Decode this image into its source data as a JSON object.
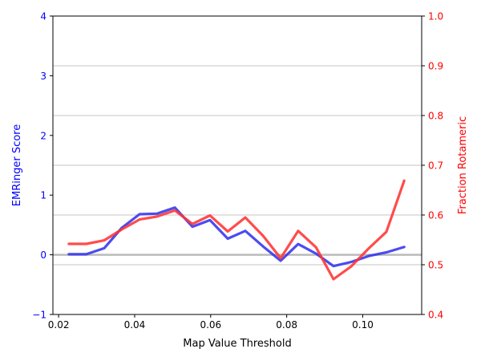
{
  "chart_data": {
    "type": "line",
    "xlabel": "Map Value Threshold",
    "ylabel_left": "EMRinger Score",
    "ylabel_right": "Fraction Rotameric",
    "xlim": [
      0.0185,
      0.1155
    ],
    "ylim_left": [
      -1,
      4
    ],
    "ylim_right": [
      0.4,
      1.0
    ],
    "x_ticks": [
      0.02,
      0.04,
      0.06,
      0.08,
      0.1
    ],
    "x_tick_labels": [
      "0.02",
      "0.04",
      "0.06",
      "0.08",
      "0.10"
    ],
    "y_left_ticks": [
      -1,
      0,
      1,
      2,
      3,
      4
    ],
    "y_left_tick_labels": [
      "−1",
      "0",
      "1",
      "2",
      "3",
      "4"
    ],
    "y_right_ticks": [
      0.4,
      0.5,
      0.6,
      0.7,
      0.8,
      0.9,
      1.0
    ],
    "y_right_tick_labels": [
      "0.4",
      "0.5",
      "0.6",
      "0.7",
      "0.8",
      "0.9",
      "1.0"
    ],
    "grid": "horizontal, right axis",
    "zero_line": 0,
    "x": [
      0.0227,
      0.0273,
      0.032,
      0.0366,
      0.0413,
      0.0459,
      0.0506,
      0.0552,
      0.0598,
      0.0645,
      0.0691,
      0.0738,
      0.0784,
      0.083,
      0.0877,
      0.0923,
      0.097,
      0.1016,
      0.1062,
      0.1109
    ],
    "series": [
      {
        "axis": "left",
        "color": "#3333ee",
        "values": [
          0.01,
          0.01,
          0.11,
          0.45,
          0.68,
          0.69,
          0.79,
          0.47,
          0.58,
          0.27,
          0.4,
          0.14,
          -0.1,
          0.18,
          0.02,
          -0.19,
          -0.12,
          -0.02,
          0.04,
          0.13
        ]
      },
      {
        "axis": "right",
        "color": "#ff3333",
        "values": [
          0.542,
          0.542,
          0.549,
          0.571,
          0.591,
          0.597,
          0.609,
          0.582,
          0.599,
          0.567,
          0.595,
          0.558,
          0.513,
          0.568,
          0.535,
          0.471,
          0.497,
          0.533,
          0.566,
          0.669
        ]
      }
    ]
  }
}
